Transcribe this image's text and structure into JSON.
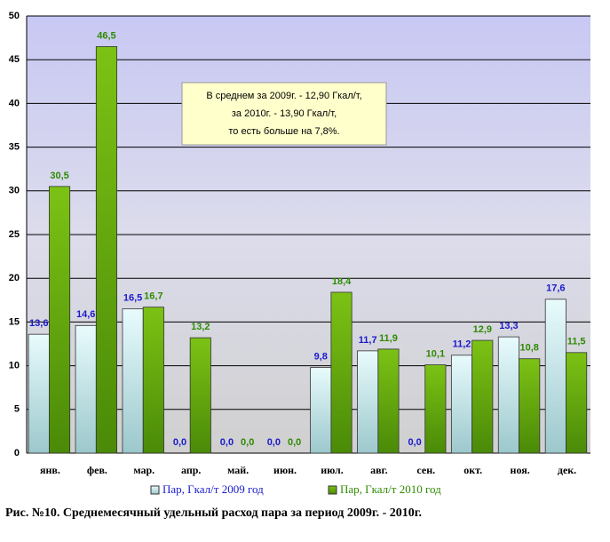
{
  "chart_data": {
    "type": "bar",
    "categories": [
      "янв.",
      "фев.",
      "мар.",
      "апр.",
      "май.",
      "июн.",
      "июл.",
      "авг.",
      "сен.",
      "окт.",
      "ноя.",
      "дек."
    ],
    "series": [
      {
        "name": "Пар, Гкал/т 2009 год",
        "color": "#c8f0f4",
        "label_color": "#1a1acc",
        "values": [
          13.6,
          14.6,
          16.5,
          0,
          0,
          0,
          9.8,
          11.7,
          0,
          11.2,
          13.3,
          17.6
        ],
        "value_labels": [
          "13,6",
          "14,6",
          "16,5",
          "0,0",
          "0,0",
          "0,0",
          "9,8",
          "11,7",
          "0,0",
          "11,2",
          "13,3",
          "17,6"
        ]
      },
      {
        "name": "Пар, Гкал/т 2010 год",
        "color": "#6aaa10",
        "label_color": "#2e8a00",
        "values": [
          30.5,
          46.5,
          16.7,
          13.2,
          0,
          0,
          18.4,
          11.9,
          10.1,
          12.9,
          10.8,
          11.5
        ],
        "value_labels": [
          "30,5",
          "46,5",
          "16,7",
          "13,2",
          "0,0",
          "0,0",
          "18,4",
          "11,9",
          "10,1",
          "12,9",
          "10,8",
          "11,5"
        ]
      }
    ],
    "ylim": [
      0,
      50
    ],
    "yticks": [
      0,
      5,
      10,
      15,
      20,
      25,
      30,
      35,
      40,
      45,
      50
    ],
    "grid": true,
    "annotation": [
      "В среднем за 2009г. - 12,90 Гкал/т,",
      "за 2010г. - 13,90 Гкал/т,",
      "то есть больше на 7,8%."
    ],
    "caption": "Рис. №10. Среднемесячный удельный расход пара за период 2009г. - 2010г."
  }
}
